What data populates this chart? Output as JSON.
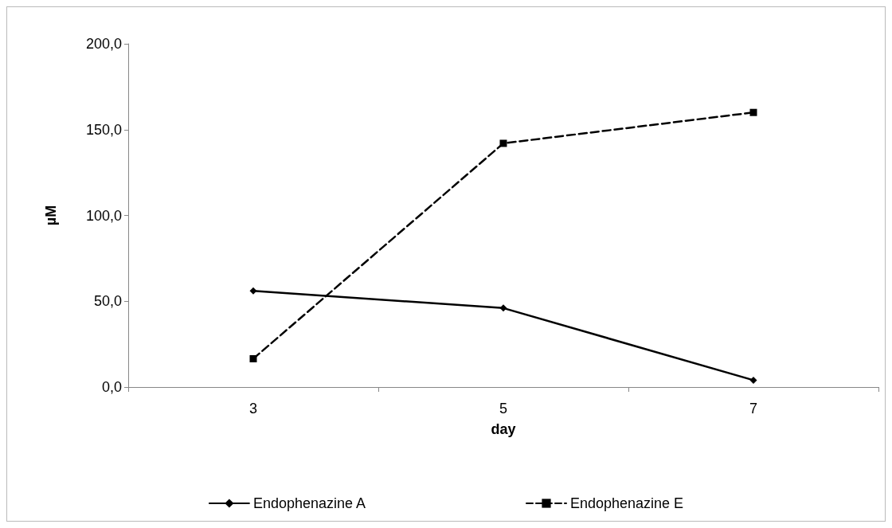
{
  "chart_data": {
    "type": "line",
    "xlabel": "day",
    "ylabel": "µM",
    "categories": [
      "3",
      "5",
      "7"
    ],
    "ylim": [
      0,
      200
    ],
    "yticks": [
      {
        "value": 0,
        "label": "0,0"
      },
      {
        "value": 50,
        "label": "50,0"
      },
      {
        "value": 100,
        "label": "100,0"
      },
      {
        "value": 150,
        "label": "150,0"
      },
      {
        "value": 200,
        "label": "200,0"
      }
    ],
    "grid": false,
    "legend": "bottom",
    "series": [
      {
        "name": "Endophenazine A",
        "color": "#000000",
        "values": [
          56,
          46,
          4
        ],
        "marker": "diamond",
        "line_style": "solid"
      },
      {
        "name": "Endophenazine E",
        "color": "#000000",
        "values": [
          16.5,
          142,
          160
        ],
        "marker": "square",
        "line_style": "dashed"
      }
    ]
  }
}
